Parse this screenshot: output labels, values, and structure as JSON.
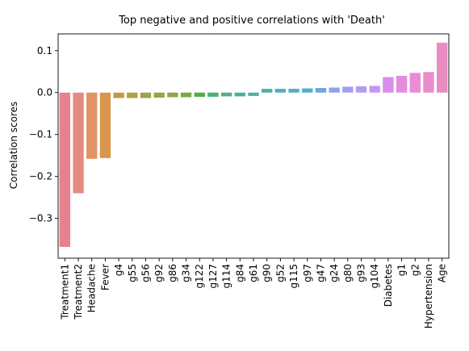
{
  "chart_data": {
    "type": "bar",
    "title": "Top negative and positive correlations with 'Death'",
    "xlabel": "",
    "ylabel": "Correlation scores",
    "ylim": [
      -0.395,
      0.14
    ],
    "yticks": [
      -0.3,
      -0.2,
      -0.1,
      0.0,
      0.1
    ],
    "ytick_labels": [
      "−0.3",
      "−0.2",
      "−0.1",
      "0.0",
      "0.1"
    ],
    "grid": false,
    "categories": [
      "Treatment1",
      "Treatment2",
      "Headache",
      "Fever",
      "g4",
      "g55",
      "g56",
      "g92",
      "g86",
      "g34",
      "g122",
      "g127",
      "g114",
      "g84",
      "g61",
      "g90",
      "g52",
      "g115",
      "g97",
      "g47",
      "g24",
      "g80",
      "g93",
      "g104",
      "Diabetes",
      "g1",
      "g2",
      "Hypertension",
      "Age"
    ],
    "values": [
      -0.368,
      -0.24,
      -0.158,
      -0.156,
      -0.013,
      -0.013,
      -0.013,
      -0.012,
      -0.011,
      -0.011,
      -0.01,
      -0.01,
      -0.009,
      -0.009,
      -0.008,
      0.009,
      0.009,
      0.009,
      0.01,
      0.011,
      0.012,
      0.014,
      0.015,
      0.016,
      0.037,
      0.04,
      0.047,
      0.049,
      0.119
    ],
    "colors": [
      "#e8818f",
      "#e58a80",
      "#e09466",
      "#d9954b",
      "#c29a47",
      "#ae9f49",
      "#a2a248",
      "#98a448",
      "#8ca848",
      "#78a948",
      "#4faf4b",
      "#4cb073",
      "#4db08a",
      "#4fb098",
      "#4fb0a3",
      "#4eafad",
      "#50afb6",
      "#52aec0",
      "#57abd0",
      "#6aa6e0",
      "#8aa4e8",
      "#a2a0ec",
      "#b39cee",
      "#c697ee",
      "#d98dea",
      "#e58be0",
      "#e88cd6",
      "#e98ccd",
      "#e98cc1"
    ]
  }
}
